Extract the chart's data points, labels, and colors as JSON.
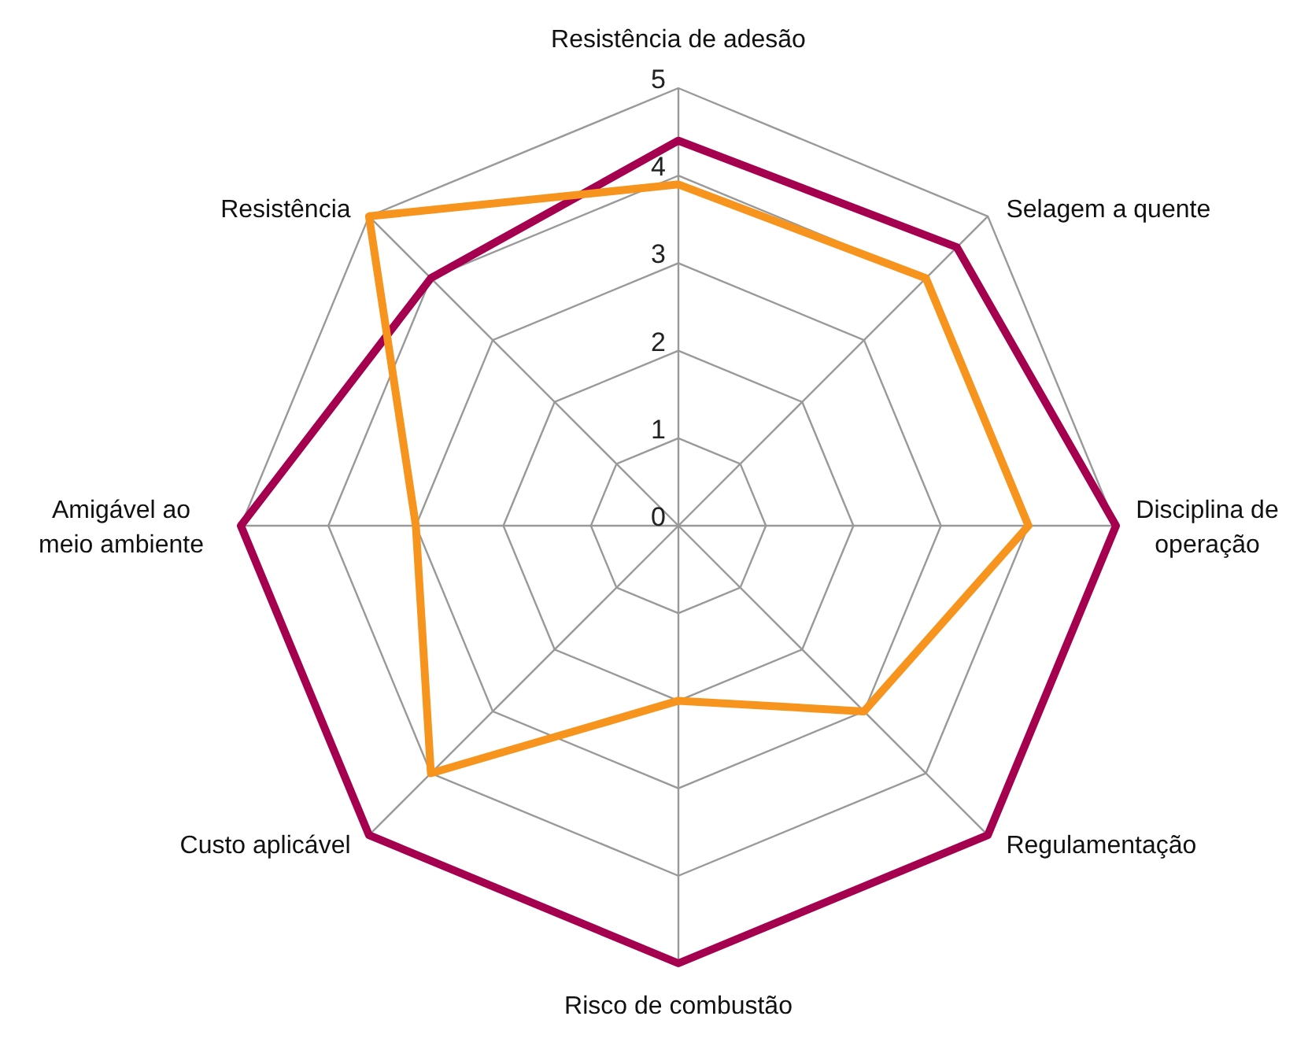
{
  "chart_data": {
    "type": "radar",
    "categories": [
      "Resistência de adesão",
      "Selagem a quente",
      "Disciplina de operação",
      "Regulamentação",
      "Risco de combustão",
      "Custo aplicável",
      "Amigável ao meio ambiente",
      "Resistência"
    ],
    "series": [
      {
        "color": "#a5004f",
        "values": [
          4.4,
          4.5,
          5,
          5,
          5,
          5,
          5,
          4
        ]
      },
      {
        "color": "#f7941d",
        "values": [
          3.9,
          4,
          4,
          3,
          2,
          4,
          3,
          5
        ]
      }
    ],
    "ylim": [
      0,
      5
    ],
    "yticks": [
      0,
      1,
      2,
      3,
      4,
      5
    ],
    "grid": true,
    "legend": false
  }
}
